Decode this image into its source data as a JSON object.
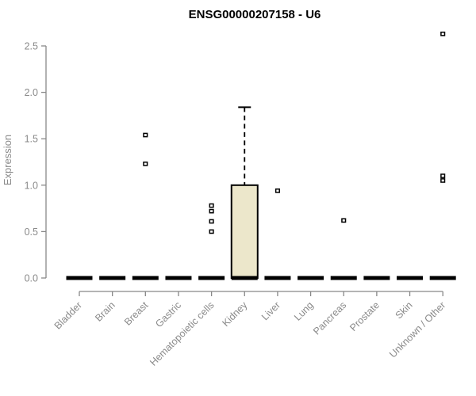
{
  "chart_data": {
    "type": "boxplot",
    "title": "ENSG00000207158 - U6",
    "ylabel": "Expression",
    "xlabel": "",
    "ylim": [
      0,
      2.5
    ],
    "grid": false,
    "legend": null,
    "ytick_values": [
      0,
      0.5,
      1,
      1.5,
      2,
      2.5
    ],
    "ytick_labels": [
      "0.0",
      "0.5",
      "1.0",
      "1.5",
      "2.0",
      "2.5"
    ],
    "categories": [
      "Bladder",
      "Brain",
      "Breast",
      "Gastric",
      "Hematopoietic cells",
      "Kidney",
      "Liver",
      "Lung",
      "Pancreas",
      "Prostate",
      "Skin",
      "Unknown / Other"
    ],
    "boxes": [
      {
        "category": "Bladder",
        "median": 0,
        "q1": 0,
        "q3": 0,
        "whisker_low": 0,
        "whisker_high": 0,
        "outliers": []
      },
      {
        "category": "Brain",
        "median": 0,
        "q1": 0,
        "q3": 0,
        "whisker_low": 0,
        "whisker_high": 0,
        "outliers": []
      },
      {
        "category": "Breast",
        "median": 0,
        "q1": 0,
        "q3": 0,
        "whisker_low": 0,
        "whisker_high": 0,
        "outliers": [
          1.54,
          1.23
        ]
      },
      {
        "category": "Gastric",
        "median": 0,
        "q1": 0,
        "q3": 0,
        "whisker_low": 0,
        "whisker_high": 0,
        "outliers": []
      },
      {
        "category": "Hematopoietic cells",
        "median": 0,
        "q1": 0,
        "q3": 0,
        "whisker_low": 0,
        "whisker_high": 0,
        "outliers": [
          0.78,
          0.72,
          0.61,
          0.5
        ]
      },
      {
        "category": "Kidney",
        "median": 0,
        "q1": 0,
        "q3": 1.0,
        "whisker_low": 0,
        "whisker_high": 1.84,
        "outliers": []
      },
      {
        "category": "Liver",
        "median": 0,
        "q1": 0,
        "q3": 0,
        "whisker_low": 0,
        "whisker_high": 0,
        "outliers": [
          0.94
        ]
      },
      {
        "category": "Lung",
        "median": 0,
        "q1": 0,
        "q3": 0,
        "whisker_low": 0,
        "whisker_high": 0,
        "outliers": []
      },
      {
        "category": "Pancreas",
        "median": 0,
        "q1": 0,
        "q3": 0,
        "whisker_low": 0,
        "whisker_high": 0,
        "outliers": [
          0.62
        ]
      },
      {
        "category": "Prostate",
        "median": 0,
        "q1": 0,
        "q3": 0,
        "whisker_low": 0,
        "whisker_high": 0,
        "outliers": []
      },
      {
        "category": "Skin",
        "median": 0,
        "q1": 0,
        "q3": 0,
        "whisker_low": 0,
        "whisker_high": 0,
        "outliers": []
      },
      {
        "category": "Unknown / Other",
        "median": 0,
        "q1": 0,
        "q3": 0,
        "whisker_low": 0,
        "whisker_high": 0,
        "outliers": [
          2.63,
          1.1,
          1.05
        ]
      }
    ],
    "colors": {
      "box_fill": "#ece7cb",
      "box_stroke": "#000000",
      "median": "#000000",
      "outlier_stroke": "#000000",
      "outlier_fill": "#ffffff",
      "axis_line": "#888888",
      "axis_text": "#8a8a8a",
      "title_color": "#000000"
    }
  }
}
